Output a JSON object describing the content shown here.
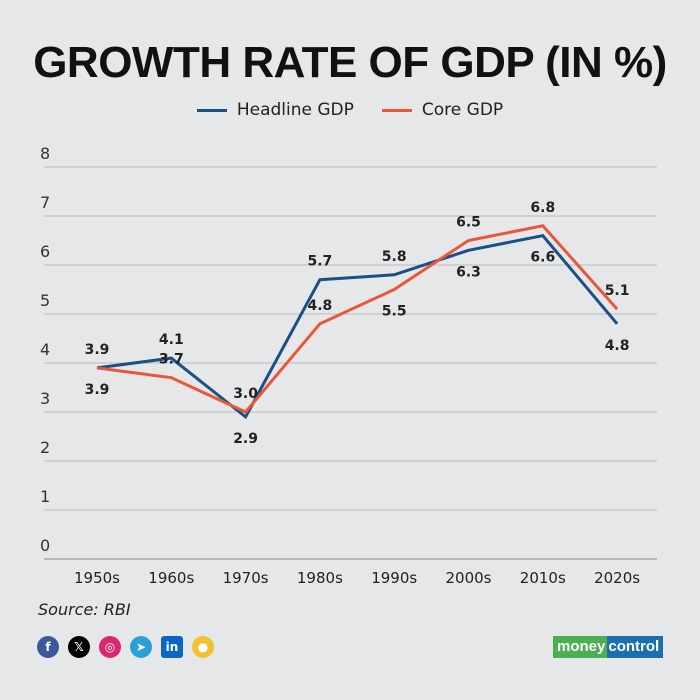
{
  "chart_data": {
    "type": "line",
    "title": "GROWTH RATE OF GDP (IN %)",
    "categories": [
      "1950s",
      "1960s",
      "1970s",
      "1980s",
      "1990s",
      "2000s",
      "2010s",
      "2020s"
    ],
    "series": [
      {
        "name": "Headline GDP",
        "color": "#1b4f86",
        "values": [
          3.9,
          4.1,
          2.9,
          5.7,
          5.8,
          6.3,
          6.6,
          4.8
        ]
      },
      {
        "name": "Core GDP",
        "color": "#e8573a",
        "values": [
          3.9,
          3.7,
          3.0,
          4.8,
          5.5,
          6.5,
          6.8,
          5.1
        ]
      }
    ],
    "ylim": [
      0,
      8
    ],
    "yticks": [
      0,
      1,
      2,
      3,
      4,
      5,
      6,
      7,
      8
    ],
    "grid": true,
    "legend": "top-center",
    "data_labels": true
  },
  "footer": {
    "source": "Source: RBI",
    "social_icons": [
      "facebook-icon",
      "x-icon",
      "instagram-icon",
      "telegram-icon",
      "linkedin-icon",
      "koo-icon"
    ],
    "logo": {
      "part1": "money",
      "part2": "control"
    }
  }
}
